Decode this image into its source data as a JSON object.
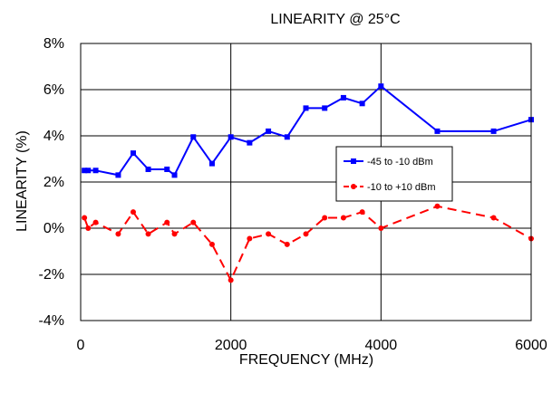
{
  "chart_data": {
    "type": "line",
    "title": "LINEARITY @ 25°C",
    "xlabel": "FREQUENCY (MHz)",
    "ylabel": "LINEARITY (%)",
    "xlim": [
      0,
      6000
    ],
    "ylim": [
      -4,
      8
    ],
    "xticks": [
      0,
      2000,
      4000,
      6000
    ],
    "xtick_labels": [
      "0",
      "2000",
      "4000",
      "6000"
    ],
    "yticks": [
      -4,
      -2,
      0,
      2,
      4,
      6,
      8
    ],
    "ytick_labels": [
      "-4%",
      "-2%",
      "0%",
      "2%",
      "4%",
      "6%",
      "8%"
    ],
    "grid": "major vertical and horizontal gridlines",
    "legend_position": "center-right",
    "series": [
      {
        "name": "-45 to -10 dBm",
        "color": "#0000ff",
        "line_style": "solid",
        "marker": "square",
        "x": [
          50,
          100,
          200,
          500,
          700,
          900,
          1150,
          1250,
          1500,
          1750,
          2000,
          2250,
          2500,
          2750,
          3000,
          3250,
          3500,
          3750,
          4000,
          4750,
          5500,
          6000
        ],
        "y": [
          2.5,
          2.5,
          2.5,
          2.3,
          3.25,
          2.55,
          2.55,
          2.3,
          3.95,
          2.8,
          3.95,
          3.7,
          4.2,
          3.95,
          5.2,
          5.2,
          5.65,
          5.4,
          6.15,
          4.2,
          4.2,
          4.7
        ]
      },
      {
        "name": "-10 to +10 dBm",
        "color": "#ff0000",
        "line_style": "dashed",
        "marker": "circle",
        "x": [
          50,
          100,
          200,
          500,
          700,
          900,
          1150,
          1250,
          1500,
          1750,
          2000,
          2250,
          2500,
          2750,
          3000,
          3250,
          3500,
          3750,
          4000,
          4750,
          5500,
          6000
        ],
        "y": [
          0.45,
          0.0,
          0.25,
          -0.25,
          0.7,
          -0.25,
          0.25,
          -0.25,
          0.25,
          -0.7,
          -2.25,
          -0.45,
          -0.25,
          -0.7,
          -0.25,
          0.45,
          0.45,
          0.7,
          0.0,
          0.95,
          0.45,
          -0.45
        ]
      }
    ]
  }
}
